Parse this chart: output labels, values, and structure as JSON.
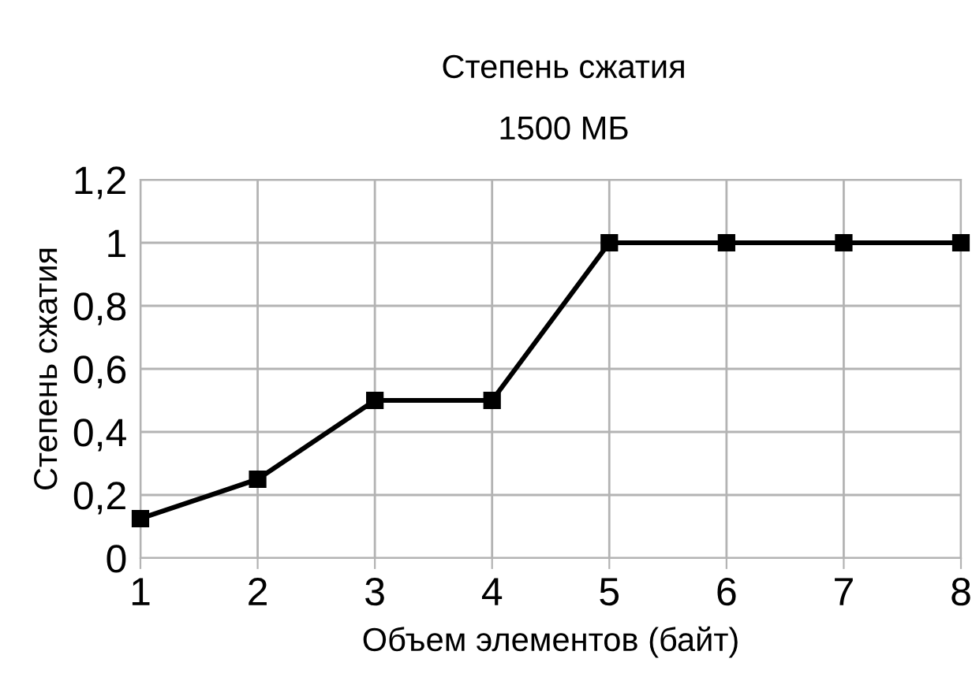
{
  "chart_data": {
    "type": "line",
    "title": "Степень сжатия",
    "subtitle": "1500 МБ",
    "xlabel": "Объем элементов (байт)",
    "ylabel": "Степень сжатия",
    "x": [
      1,
      2,
      3,
      4,
      5,
      6,
      7,
      8
    ],
    "series": [
      {
        "color": "#000000",
        "values": [
          0.125,
          0.25,
          0.5,
          0.5,
          1,
          1,
          1,
          1
        ]
      }
    ],
    "xlim": [
      1,
      8
    ],
    "xticks": [
      1,
      2,
      3,
      4,
      5,
      6,
      7,
      8
    ],
    "ylim": [
      0,
      1.2
    ],
    "yticks": [
      0,
      {
        "value": 0.2,
        "label": "0,2"
      },
      {
        "value": 0.4,
        "label": "0,4"
      },
      {
        "value": 0.6,
        "label": "0,6"
      },
      {
        "value": 0.8,
        "label": "0,8"
      },
      1,
      {
        "value": 1.2,
        "label": "1,2"
      }
    ],
    "grid": true,
    "marker": "square",
    "line_style": "solid"
  }
}
